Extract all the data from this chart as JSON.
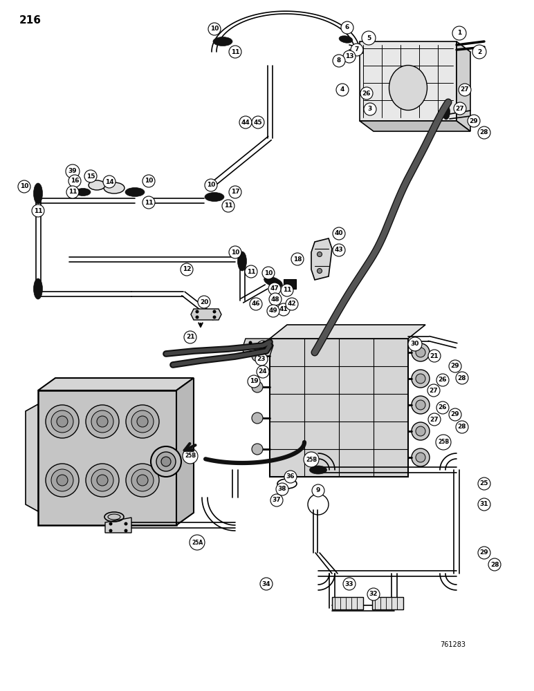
{
  "page_number": "216",
  "figure_number": "761283",
  "background_color": "#ffffff",
  "line_color": "#000000",
  "figsize": [
    7.72,
    10.0
  ],
  "dpi": 100,
  "labels": {
    "top_left": "216",
    "bottom_right": "761283"
  },
  "pipe_lw": 2.5,
  "thin_lw": 1.2,
  "thick_lw": 7.0,
  "connector_color": "#111111",
  "pipe_color": "#333333"
}
